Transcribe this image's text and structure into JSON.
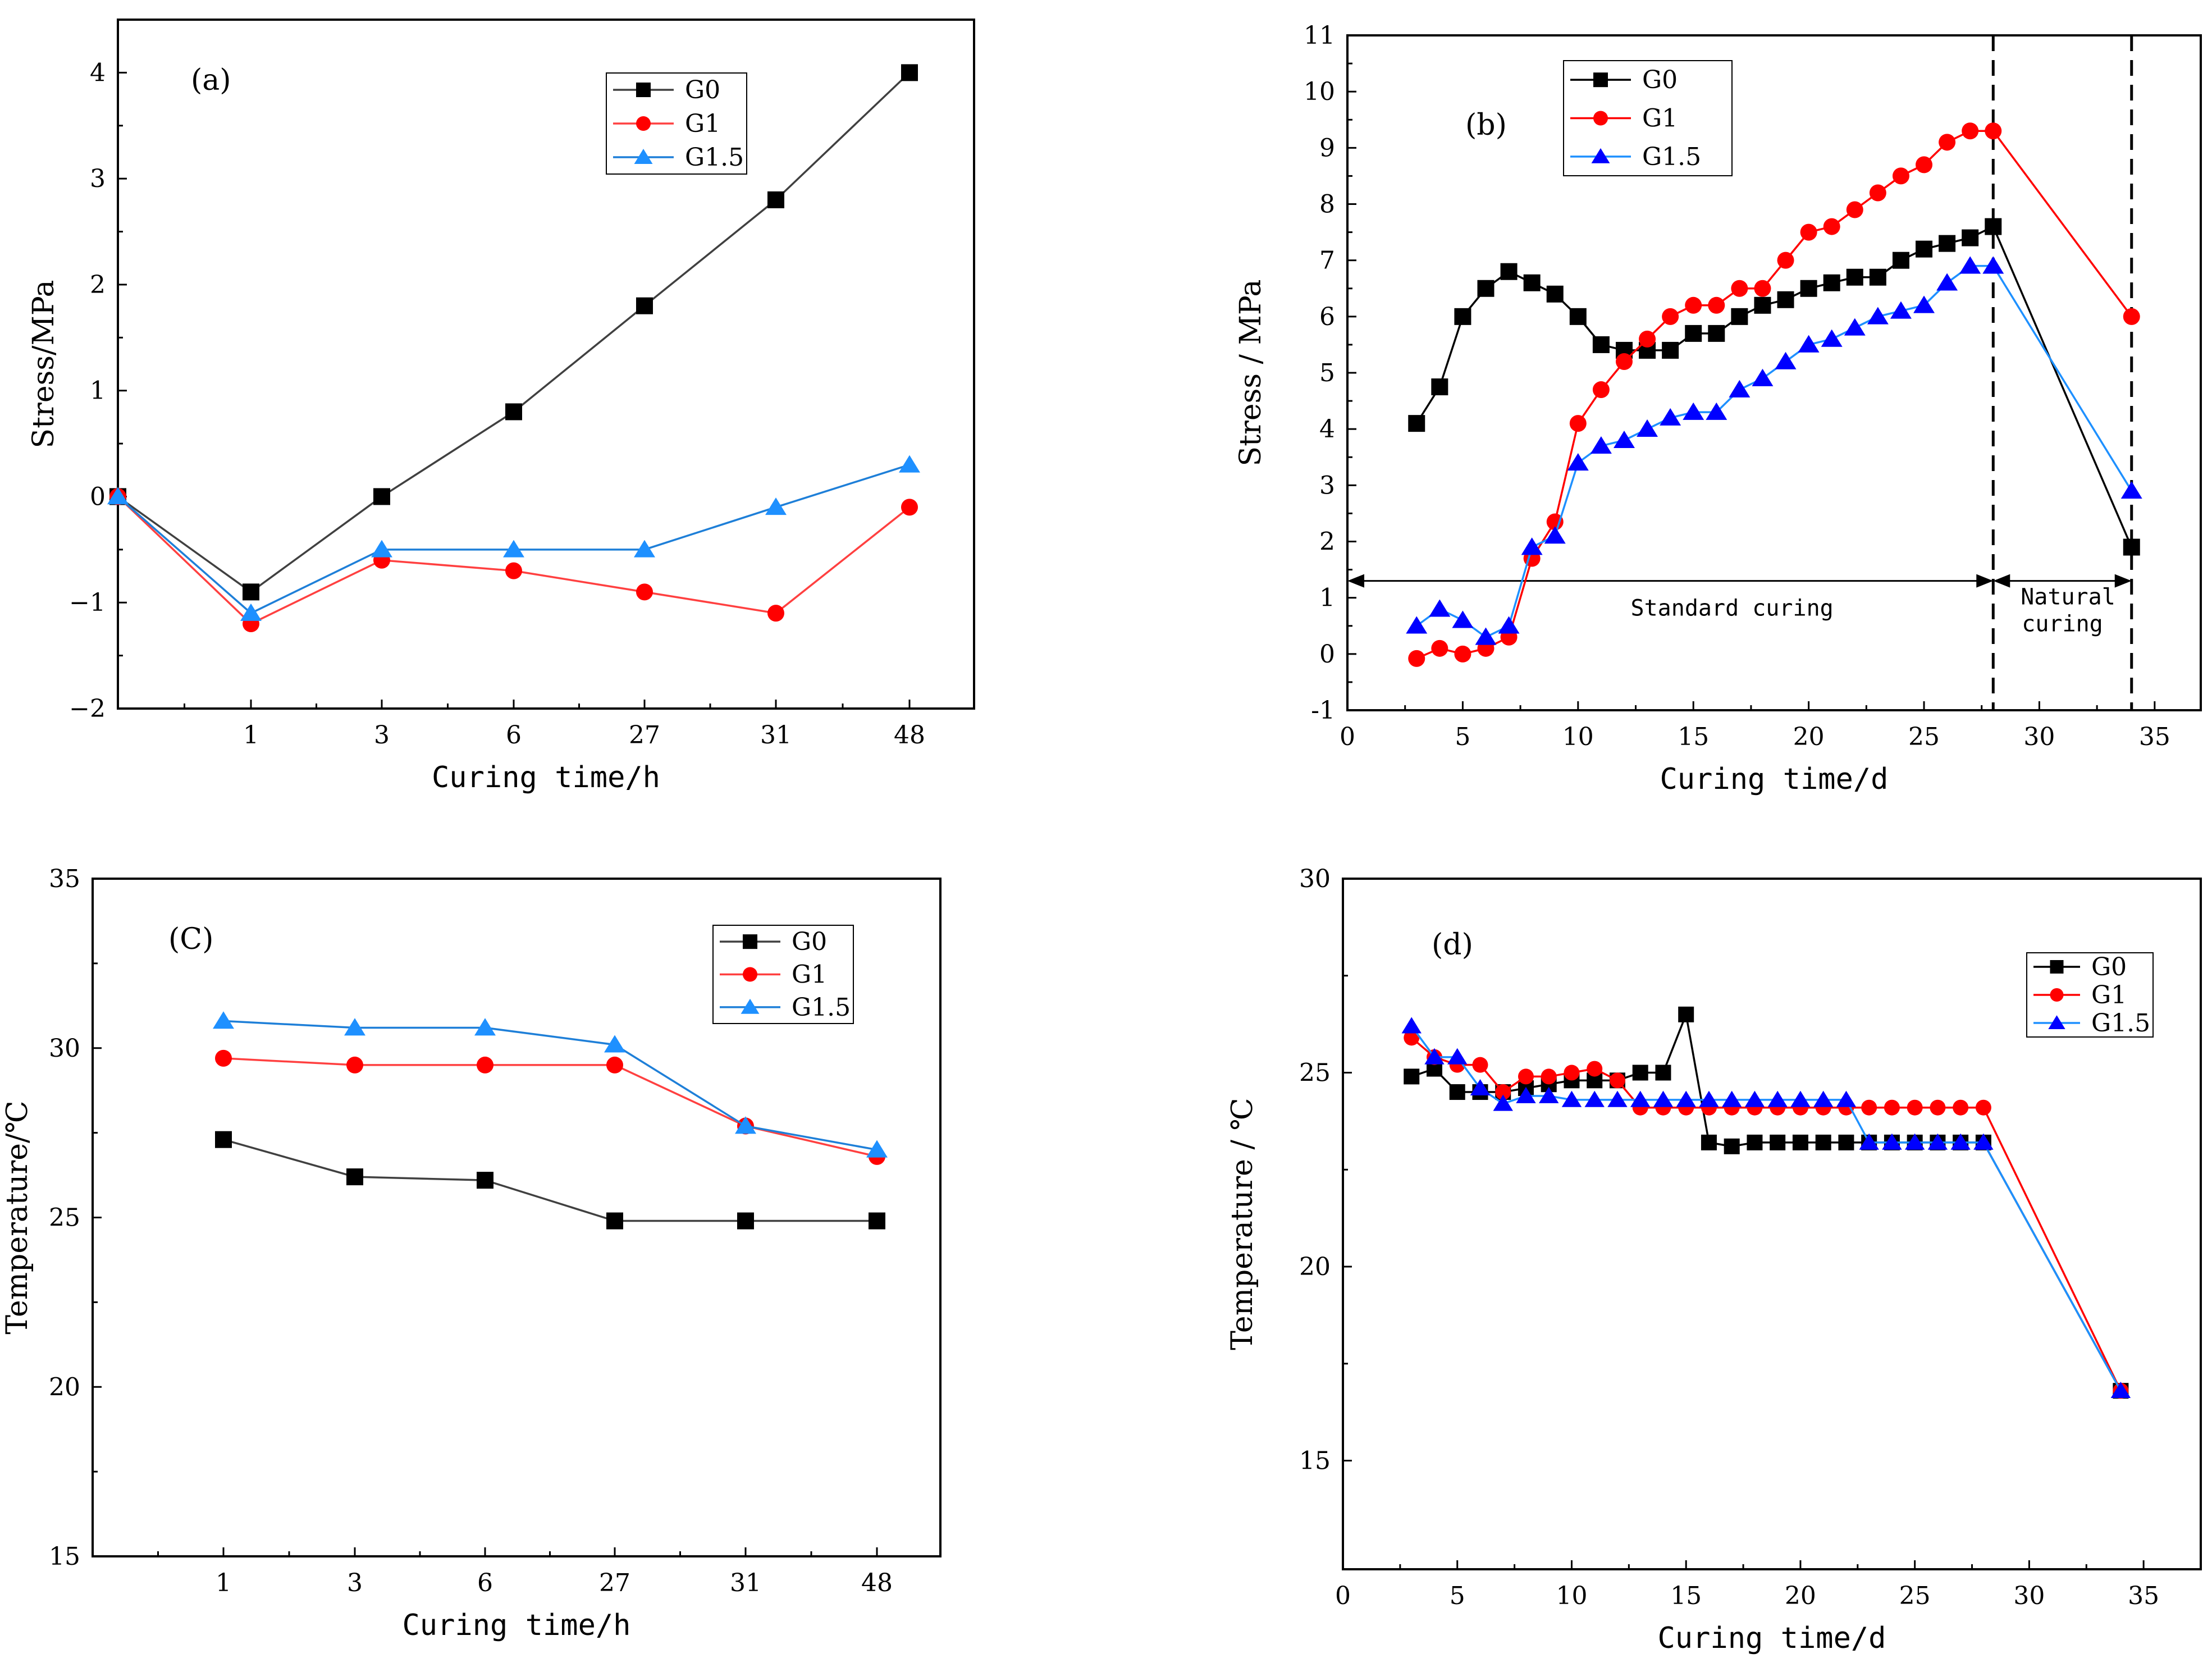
{
  "chart_data": [
    {
      "type": "line",
      "panel_label": "(a)",
      "xlabel": "Curing time/h",
      "ylabel": "Stress/MPa",
      "categories": [
        "1",
        "3",
        "6",
        "27",
        "31",
        "48"
      ],
      "x": [
        0,
        1,
        2,
        3,
        4,
        5,
        6
      ],
      "ylim": [
        -2,
        4.5
      ],
      "yticks": [
        -2,
        -1,
        0,
        1,
        2,
        3,
        4
      ],
      "ytick_labels": [
        "−2",
        "−1",
        "0",
        "1",
        "2",
        "3",
        "4"
      ],
      "legend_position": "top-right",
      "series": [
        {
          "name": "G0",
          "marker": "square",
          "color": "#000000",
          "line_color": "#404040",
          "values": [
            0,
            -0.9,
            0,
            0.8,
            1.8,
            2.8,
            4.0
          ]
        },
        {
          "name": "G1",
          "marker": "circle",
          "color": "#ff0000",
          "line_color": "#ff4040",
          "values": [
            0,
            -1.2,
            -0.6,
            -0.7,
            -0.9,
            -1.1,
            -0.1
          ]
        },
        {
          "name": "G1.5",
          "marker": "triangle",
          "color": "#1e90ff",
          "line_color": "#1e7fd8",
          "values": [
            0,
            -1.1,
            -0.5,
            -0.5,
            -0.5,
            -0.1,
            0.3
          ]
        }
      ]
    },
    {
      "type": "line",
      "panel_label": "(b)",
      "xlabel": "Curing time/d",
      "ylabel": "Stress / MPa",
      "xlim": [
        0,
        37
      ],
      "xticks": [
        0,
        5,
        10,
        15,
        20,
        25,
        30,
        35
      ],
      "ylim": [
        -1,
        11
      ],
      "yticks": [
        -1,
        0,
        1,
        2,
        3,
        4,
        5,
        6,
        7,
        8,
        9,
        10,
        11
      ],
      "legend_position": "top-left",
      "annotations": {
        "standard_curing": "Standard curing",
        "natural_curing_line1": "Natural",
        "natural_curing_line2": "curing",
        "dashed_lines_x": [
          28,
          34
        ],
        "arrow_y": 1.3,
        "standard_range": [
          0,
          28
        ],
        "natural_range": [
          28,
          34
        ]
      },
      "series": [
        {
          "name": "G0",
          "marker": "square",
          "color": "#000000",
          "line_color": "#000000",
          "x": [
            3,
            4,
            5,
            6,
            7,
            8,
            9,
            10,
            11,
            12,
            13,
            14,
            15,
            16,
            17,
            18,
            19,
            20,
            21,
            22,
            23,
            24,
            25,
            26,
            27,
            28,
            34
          ],
          "values": [
            4.1,
            4.75,
            6.0,
            6.5,
            6.8,
            6.6,
            6.4,
            6.0,
            5.5,
            5.4,
            5.4,
            5.4,
            5.7,
            5.7,
            6.0,
            6.2,
            6.3,
            6.5,
            6.6,
            6.7,
            6.7,
            7.0,
            7.2,
            7.3,
            7.4,
            7.6,
            1.9
          ]
        },
        {
          "name": "G1",
          "marker": "circle",
          "color": "#ff0000",
          "line_color": "#ff0000",
          "x": [
            3,
            4,
            5,
            6,
            7,
            8,
            9,
            10,
            11,
            12,
            13,
            14,
            15,
            16,
            17,
            18,
            19,
            20,
            21,
            22,
            23,
            24,
            25,
            26,
            27,
            28,
            34
          ],
          "values": [
            -0.08,
            0.1,
            0.0,
            0.1,
            0.3,
            1.7,
            2.35,
            4.1,
            4.7,
            5.2,
            5.6,
            6.0,
            6.2,
            6.2,
            6.5,
            6.5,
            7.0,
            7.5,
            7.6,
            7.9,
            8.2,
            8.5,
            8.7,
            9.1,
            9.3,
            9.3,
            6.0
          ]
        },
        {
          "name": "G1.5",
          "marker": "triangle",
          "color": "#0000ff",
          "line_color": "#1e90ff",
          "x": [
            3,
            4,
            5,
            6,
            7,
            8,
            9,
            10,
            11,
            12,
            13,
            14,
            15,
            16,
            17,
            18,
            19,
            20,
            21,
            22,
            23,
            24,
            25,
            26,
            27,
            28,
            34
          ],
          "values": [
            0.5,
            0.8,
            0.6,
            0.3,
            0.5,
            1.9,
            2.1,
            3.4,
            3.7,
            3.8,
            4.0,
            4.2,
            4.3,
            4.3,
            4.7,
            4.9,
            5.2,
            5.5,
            5.6,
            5.8,
            6.0,
            6.1,
            6.2,
            6.6,
            6.9,
            6.9,
            2.9
          ]
        }
      ]
    },
    {
      "type": "line",
      "panel_label": "(C)",
      "xlabel": "Curing time/h",
      "ylabel": "Temperature/℃",
      "categories": [
        "1",
        "3",
        "6",
        "27",
        "31",
        "48"
      ],
      "x": [
        1,
        2,
        3,
        4,
        5,
        6
      ],
      "ylim": [
        15,
        35
      ],
      "yticks": [
        15,
        20,
        25,
        30,
        35
      ],
      "legend_position": "top-right",
      "series": [
        {
          "name": "G0",
          "marker": "square",
          "color": "#000000",
          "line_color": "#404040",
          "values": [
            27.3,
            26.2,
            26.1,
            24.9,
            24.9,
            24.9
          ]
        },
        {
          "name": "G1",
          "marker": "circle",
          "color": "#ff0000",
          "line_color": "#ff4040",
          "values": [
            29.7,
            29.5,
            29.5,
            29.5,
            27.7,
            26.8
          ]
        },
        {
          "name": "G1.5",
          "marker": "triangle",
          "color": "#1e90ff",
          "line_color": "#1e7fd8",
          "values": [
            30.8,
            30.6,
            30.6,
            30.1,
            27.7,
            27.0
          ]
        }
      ]
    },
    {
      "type": "line",
      "panel_label": "(d)",
      "xlabel": "Curing time/d",
      "ylabel": "Temperature / ℃",
      "xlim": [
        0,
        37.5
      ],
      "xticks": [
        0,
        5,
        10,
        15,
        20,
        25,
        30,
        35
      ],
      "ylim": [
        12.2,
        30
      ],
      "yticks": [
        15,
        20,
        25,
        30
      ],
      "legend_position": "top-right",
      "series": [
        {
          "name": "G0",
          "marker": "square",
          "color": "#000000",
          "line_color": "#000000",
          "x": [
            3,
            4,
            5,
            6,
            7,
            8,
            9,
            10,
            11,
            12,
            13,
            14,
            15,
            16,
            17,
            18,
            19,
            20,
            21,
            22,
            23,
            24,
            25,
            26,
            27,
            28,
            34
          ],
          "values": [
            24.9,
            25.1,
            24.5,
            24.5,
            24.5,
            24.6,
            24.7,
            24.8,
            24.8,
            24.8,
            25.0,
            25.0,
            26.5,
            23.2,
            23.1,
            23.2,
            23.2,
            23.2,
            23.2,
            23.2,
            23.2,
            23.2,
            23.2,
            23.2,
            23.2,
            23.2,
            16.8
          ]
        },
        {
          "name": "G1",
          "marker": "circle",
          "color": "#ff0000",
          "line_color": "#ff0000",
          "x": [
            3,
            4,
            5,
            6,
            7,
            8,
            9,
            10,
            11,
            12,
            13,
            14,
            15,
            16,
            17,
            18,
            19,
            20,
            21,
            22,
            23,
            24,
            25,
            26,
            27,
            28,
            34
          ],
          "values": [
            25.9,
            25.4,
            25.2,
            25.2,
            24.5,
            24.9,
            24.9,
            25.0,
            25.1,
            24.8,
            24.1,
            24.1,
            24.1,
            24.1,
            24.1,
            24.1,
            24.1,
            24.1,
            24.1,
            24.1,
            24.1,
            24.1,
            24.1,
            24.1,
            24.1,
            24.1,
            16.8
          ]
        },
        {
          "name": "G1.5",
          "marker": "triangle",
          "color": "#0000ff",
          "line_color": "#1e90ff",
          "x": [
            3,
            4,
            5,
            6,
            7,
            8,
            9,
            10,
            11,
            12,
            13,
            14,
            15,
            16,
            17,
            18,
            19,
            20,
            21,
            22,
            23,
            24,
            25,
            26,
            27,
            28,
            34
          ],
          "values": [
            26.2,
            25.4,
            25.4,
            24.6,
            24.2,
            24.4,
            24.4,
            24.3,
            24.3,
            24.3,
            24.3,
            24.3,
            24.3,
            24.3,
            24.3,
            24.3,
            24.3,
            24.3,
            24.3,
            24.3,
            23.2,
            23.2,
            23.2,
            23.2,
            23.2,
            23.2,
            16.8
          ]
        }
      ]
    }
  ]
}
